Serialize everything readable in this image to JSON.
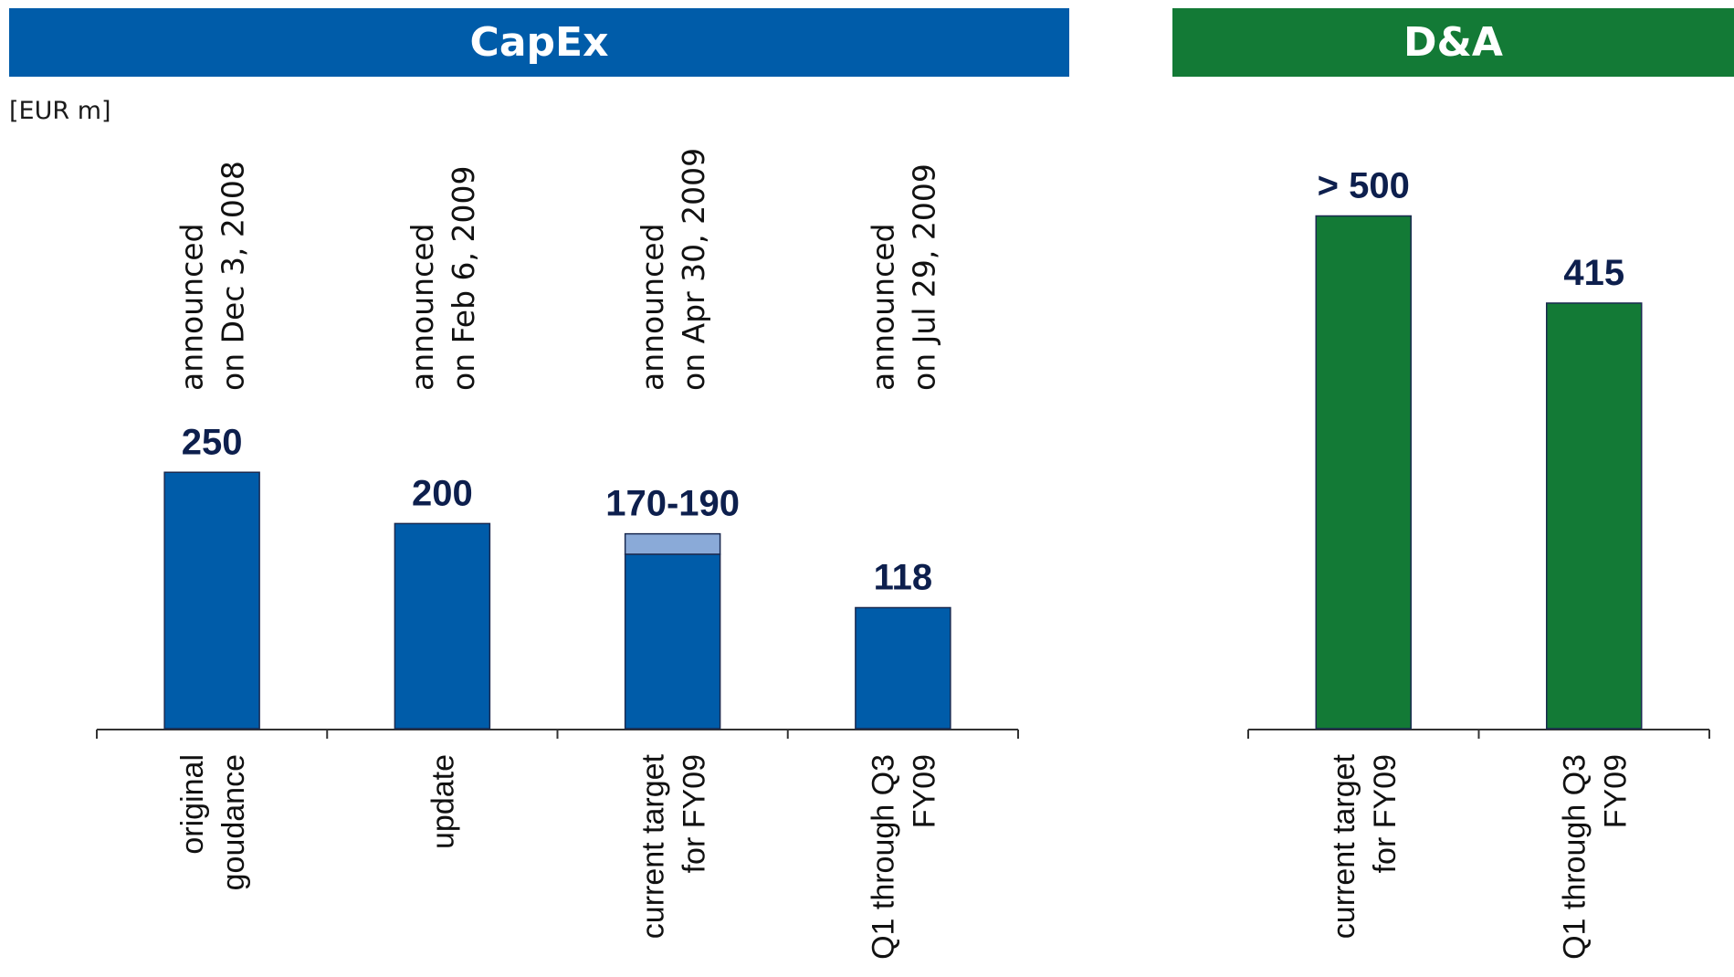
{
  "headers": {
    "capex": "CapEx",
    "da": "D&A"
  },
  "unit_label": "[EUR m]",
  "colors": {
    "capex": "#005ca9",
    "capex_range": "#8aaad8",
    "da": "#137a36",
    "value_text": "#0d1f4d"
  },
  "chart_data": [
    {
      "type": "bar",
      "title": "CapEx",
      "ylabel": "[EUR m]",
      "categories": [
        "original\ngoudance",
        "update",
        "current target\nfor FY09",
        "Q1 through Q3\nFY09"
      ],
      "annotations": [
        "announced\non Dec 3, 2008",
        "announced\non Feb 6, 2009",
        "announced\non Apr 30, 2009",
        "announced\non Jul 29, 2009"
      ],
      "values": [
        250,
        200,
        170,
        118
      ],
      "range_upper": [
        null,
        null,
        190,
        null
      ],
      "value_labels": [
        "250",
        "200",
        "170-190",
        "118"
      ],
      "ylim": [
        0,
        560
      ]
    },
    {
      "type": "bar",
      "title": "D&A",
      "categories": [
        "current target\nfor FY09",
        "Q1 through Q3\nFY09"
      ],
      "values": [
        500,
        415
      ],
      "value_labels": [
        "> 500",
        "415"
      ],
      "ylim": [
        0,
        560
      ]
    }
  ]
}
